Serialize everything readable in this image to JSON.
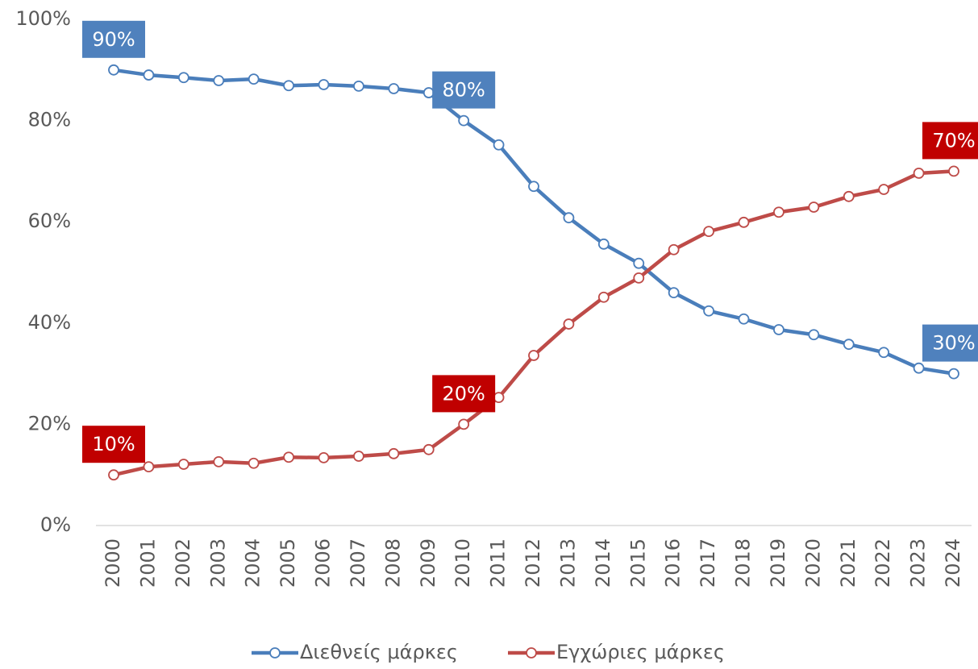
{
  "chart_data": {
    "type": "line",
    "categories": [
      "2000",
      "2001",
      "2002",
      "2003",
      "2004",
      "2005",
      "2006",
      "2007",
      "2008",
      "2009",
      "2010",
      "2011",
      "2012",
      "2013",
      "2014",
      "2015",
      "2016",
      "2017",
      "2018",
      "2019",
      "2020",
      "2021",
      "2022",
      "2023",
      "2024"
    ],
    "series": [
      {
        "name": "Διεθνείς μάρκες",
        "color": "#4a7ebb",
        "values": [
          90,
          89.0,
          88.5,
          87.9,
          88.2,
          86.9,
          87.1,
          86.8,
          86.3,
          85.5,
          80,
          75.2,
          67.0,
          60.8,
          55.6,
          51.8,
          46.0,
          42.4,
          40.8,
          38.7,
          37.7,
          35.8,
          34.2,
          31.1,
          30
        ],
        "value_labels": [
          "90%",
          null,
          null,
          null,
          null,
          null,
          null,
          null,
          null,
          null,
          "80%",
          null,
          null,
          null,
          null,
          null,
          null,
          null,
          null,
          null,
          null,
          null,
          null,
          null,
          "30%"
        ]
      },
      {
        "name": "Εγχώριες μάρκες",
        "color": "#be4b48",
        "values": [
          10,
          11.6,
          12.1,
          12.6,
          12.3,
          13.5,
          13.4,
          13.7,
          14.2,
          15.0,
          20,
          25.3,
          33.6,
          39.8,
          45.1,
          48.9,
          54.5,
          58.1,
          59.9,
          61.9,
          62.9,
          65.0,
          66.4,
          69.6,
          70
        ],
        "value_labels": [
          "10%",
          null,
          null,
          null,
          null,
          null,
          null,
          null,
          null,
          null,
          "20%",
          null,
          null,
          null,
          null,
          null,
          null,
          null,
          null,
          null,
          null,
          null,
          null,
          null,
          "70%"
        ]
      }
    ],
    "label_colors": [
      "#4f81bd",
      "#c00000"
    ],
    "ylim": [
      0,
      100
    ],
    "yticks": [
      {
        "value": 0,
        "label": "0%"
      },
      {
        "value": 20,
        "label": "20%"
      },
      {
        "value": 40,
        "label": "40%"
      },
      {
        "value": 60,
        "label": "60%"
      },
      {
        "value": 80,
        "label": "80%"
      },
      {
        "value": 100,
        "label": "100%"
      }
    ],
    "grid": false,
    "legend": "bottom"
  }
}
